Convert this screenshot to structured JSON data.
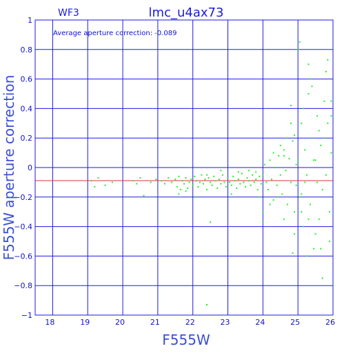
{
  "chart_data": {
    "type": "scatter",
    "title": "lmc_u4ax73",
    "chip": "WF3",
    "annotation": "Average aperture correction: -0.089",
    "xlabel": "F555W",
    "ylabel": "F555W aperture correction",
    "xlim": [
      17.5,
      26
    ],
    "ylim": [
      -1,
      1
    ],
    "xticks": [
      18,
      19,
      20,
      21,
      22,
      23,
      24,
      25,
      26
    ],
    "yticks": [
      -1,
      -0.8,
      -0.6,
      -0.4,
      -0.2,
      0,
      0.2,
      0.4,
      0.6,
      0.8,
      1
    ],
    "xtick_labels": [
      "18",
      "19",
      "20",
      "21",
      "22",
      "23",
      "24",
      "25",
      "26"
    ],
    "ytick_labels": [
      "−1",
      "−0.8",
      "−0.6",
      "−0.4",
      "−0.2",
      "0",
      "0.2",
      "0.4",
      "0.6",
      "0.8",
      "1"
    ],
    "grid": true,
    "average_line": -0.089,
    "colors": {
      "axes": "#1a1ae0",
      "points": "#22ee22",
      "average": "#e03030"
    },
    "points": [
      [
        19.1,
        -0.09
      ],
      [
        19.2,
        -0.13
      ],
      [
        19.3,
        -0.07
      ],
      [
        19.5,
        -0.12
      ],
      [
        19.7,
        -0.1
      ],
      [
        20.3,
        -0.09
      ],
      [
        20.4,
        -0.11
      ],
      [
        20.5,
        -0.07
      ],
      [
        20.6,
        -0.19
      ],
      [
        20.8,
        -0.1
      ],
      [
        20.95,
        -0.08
      ],
      [
        21.1,
        -0.09
      ],
      [
        21.2,
        -0.11
      ],
      [
        21.3,
        -0.07
      ],
      [
        21.4,
        -0.1
      ],
      [
        21.5,
        -0.08
      ],
      [
        21.55,
        -0.13
      ],
      [
        21.6,
        -0.06
      ],
      [
        21.65,
        -0.15
      ],
      [
        21.7,
        -0.09
      ],
      [
        21.75,
        -0.11
      ],
      [
        21.8,
        -0.07
      ],
      [
        21.85,
        -0.14
      ],
      [
        21.9,
        -0.1
      ],
      [
        21.95,
        -0.08
      ],
      [
        22.0,
        -0.12
      ],
      [
        22.05,
        -0.06
      ],
      [
        22.1,
        -0.09
      ],
      [
        22.15,
        -0.13
      ],
      [
        22.2,
        -0.1
      ],
      [
        22.25,
        -0.05
      ],
      [
        22.3,
        -0.11
      ],
      [
        22.35,
        -0.08
      ],
      [
        22.4,
        -0.15
      ],
      [
        22.45,
        -0.07
      ],
      [
        22.5,
        -0.1
      ],
      [
        22.55,
        -0.12
      ],
      [
        22.6,
        -0.06
      ],
      [
        22.65,
        -0.09
      ],
      [
        22.7,
        -0.14
      ],
      [
        22.75,
        -0.08
      ],
      [
        22.8,
        -0.11
      ],
      [
        22.85,
        -0.05
      ],
      [
        22.9,
        -0.1
      ],
      [
        22.95,
        -0.13
      ],
      [
        23.0,
        -0.07
      ],
      [
        23.05,
        -0.1
      ],
      [
        23.1,
        -0.12
      ],
      [
        23.15,
        -0.06
      ],
      [
        23.2,
        -0.09
      ],
      [
        23.25,
        -0.14
      ],
      [
        23.3,
        -0.08
      ],
      [
        23.35,
        -0.11
      ],
      [
        23.4,
        -0.04
      ],
      [
        23.45,
        -0.1
      ],
      [
        23.5,
        -0.13
      ],
      [
        23.55,
        -0.07
      ],
      [
        23.6,
        -0.09
      ],
      [
        23.65,
        -0.12
      ],
      [
        23.7,
        -0.05
      ],
      [
        23.75,
        -0.1
      ],
      [
        23.8,
        -0.08
      ],
      [
        23.85,
        -0.15
      ],
      [
        23.9,
        -0.06
      ],
      [
        23.95,
        -0.11
      ],
      [
        21.6,
        -0.18
      ],
      [
        21.8,
        -0.16
      ],
      [
        22.1,
        -0.2
      ],
      [
        22.4,
        -0.05
      ],
      [
        22.8,
        -0.02
      ],
      [
        23.1,
        -0.18
      ],
      [
        23.3,
        -0.03
      ],
      [
        23.6,
        -0.02
      ],
      [
        23.9,
        -0.2
      ],
      [
        22.5,
        -0.37
      ],
      [
        22.4,
        -0.93
      ],
      [
        23.8,
        -0.03
      ],
      [
        24.0,
        -0.05
      ],
      [
        24.05,
        0.02
      ],
      [
        24.1,
        -0.1
      ],
      [
        24.15,
        -0.15
      ],
      [
        24.2,
        0.05
      ],
      [
        24.25,
        -0.08
      ],
      [
        24.3,
        -0.22
      ],
      [
        24.35,
        0.0
      ],
      [
        24.4,
        -0.12
      ],
      [
        24.45,
        0.08
      ],
      [
        24.5,
        -0.05
      ],
      [
        24.55,
        -0.18
      ],
      [
        24.6,
        0.12
      ],
      [
        24.65,
        -0.02
      ],
      [
        24.7,
        -0.25
      ],
      [
        24.75,
        0.06
      ],
      [
        24.8,
        -0.1
      ],
      [
        24.85,
        0.18
      ],
      [
        24.9,
        -0.3
      ],
      [
        24.95,
        0.02
      ],
      [
        24.0,
        -0.3
      ],
      [
        24.2,
        -0.25
      ],
      [
        24.3,
        0.1
      ],
      [
        24.5,
        0.15
      ],
      [
        24.6,
        -0.35
      ],
      [
        24.7,
        0.2
      ],
      [
        24.8,
        0.3
      ],
      [
        24.9,
        0.22
      ],
      [
        24.8,
        0.42
      ],
      [
        24.4,
        -0.2
      ],
      [
        24.6,
        0.08
      ],
      [
        24.9,
        -0.45
      ],
      [
        24.0,
        -0.37
      ],
      [
        24.85,
        -0.58
      ],
      [
        24.95,
        -0.12
      ],
      [
        25.0,
        0.05
      ],
      [
        25.05,
        -0.2
      ],
      [
        25.1,
        0.3
      ],
      [
        25.15,
        -0.4
      ],
      [
        25.2,
        0.12
      ],
      [
        25.25,
        -0.05
      ],
      [
        25.3,
        0.5
      ],
      [
        25.35,
        -0.25
      ],
      [
        25.4,
        0.2
      ],
      [
        25.45,
        -0.55
      ],
      [
        25.5,
        0.05
      ],
      [
        25.55,
        0.35
      ],
      [
        25.6,
        -0.35
      ],
      [
        25.65,
        0.15
      ],
      [
        25.7,
        -0.15
      ],
      [
        25.75,
        0.45
      ],
      [
        25.8,
        -0.05
      ],
      [
        25.85,
        0.3
      ],
      [
        25.9,
        -0.3
      ],
      [
        25.95,
        0.1
      ],
      [
        25.1,
        -0.3
      ],
      [
        25.2,
        -0.1
      ],
      [
        25.3,
        0.7
      ],
      [
        25.4,
        0.55
      ],
      [
        25.5,
        -0.45
      ],
      [
        25.6,
        0.25
      ],
      [
        25.7,
        -0.75
      ],
      [
        25.8,
        0.65
      ],
      [
        25.85,
        0.73
      ],
      [
        25.9,
        -0.5
      ],
      [
        25.95,
        0.45
      ],
      [
        25.05,
        0.85
      ],
      [
        25.0,
        0.8
      ],
      [
        25.15,
        0.4
      ],
      [
        25.25,
        -0.6
      ],
      [
        25.35,
        0.6
      ],
      [
        25.45,
        0.05
      ],
      [
        25.55,
        -0.1
      ],
      [
        25.65,
        -0.55
      ],
      [
        25.75,
        0.2
      ],
      [
        25.95,
        0.35
      ],
      [
        25.1,
        -0.18
      ],
      [
        25.3,
        -0.35
      ]
    ]
  }
}
